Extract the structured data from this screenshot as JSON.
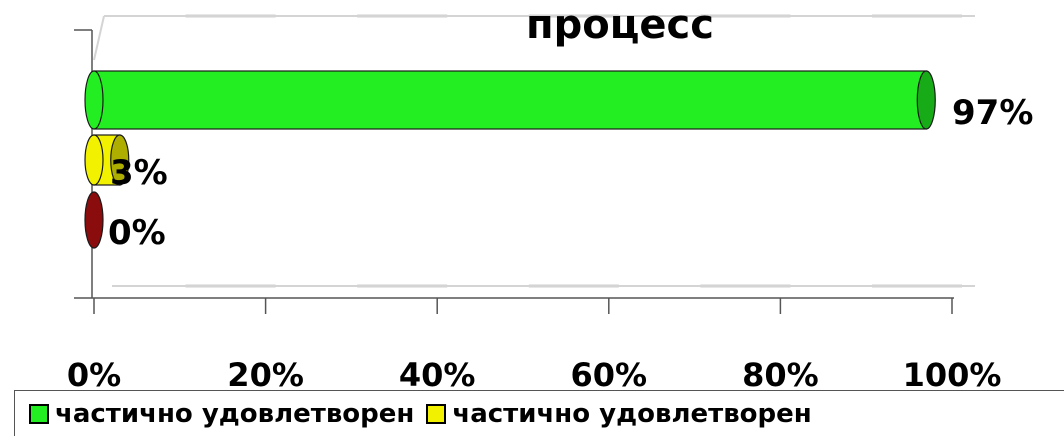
{
  "chart_data": {
    "type": "bar",
    "orientation": "horizontal",
    "title": "процесс",
    "xlim": [
      0,
      100
    ],
    "x_ticks": [
      "0%",
      "20%",
      "40%",
      "60%",
      "80%",
      "100%"
    ],
    "series": [
      {
        "value": 97,
        "label": "97%",
        "color": "#22ee22"
      },
      {
        "value": 3,
        "label": "3%",
        "color": "#f2f200"
      },
      {
        "value": 0,
        "label": "0%",
        "color": "#c01010"
      }
    ],
    "legend": [
      {
        "label": "частично удовлетворен",
        "color": "#22ee22"
      },
      {
        "label": "частично удовлетворен",
        "color": "#f2f200"
      }
    ],
    "legend_position": "bottom",
    "grid": true
  }
}
